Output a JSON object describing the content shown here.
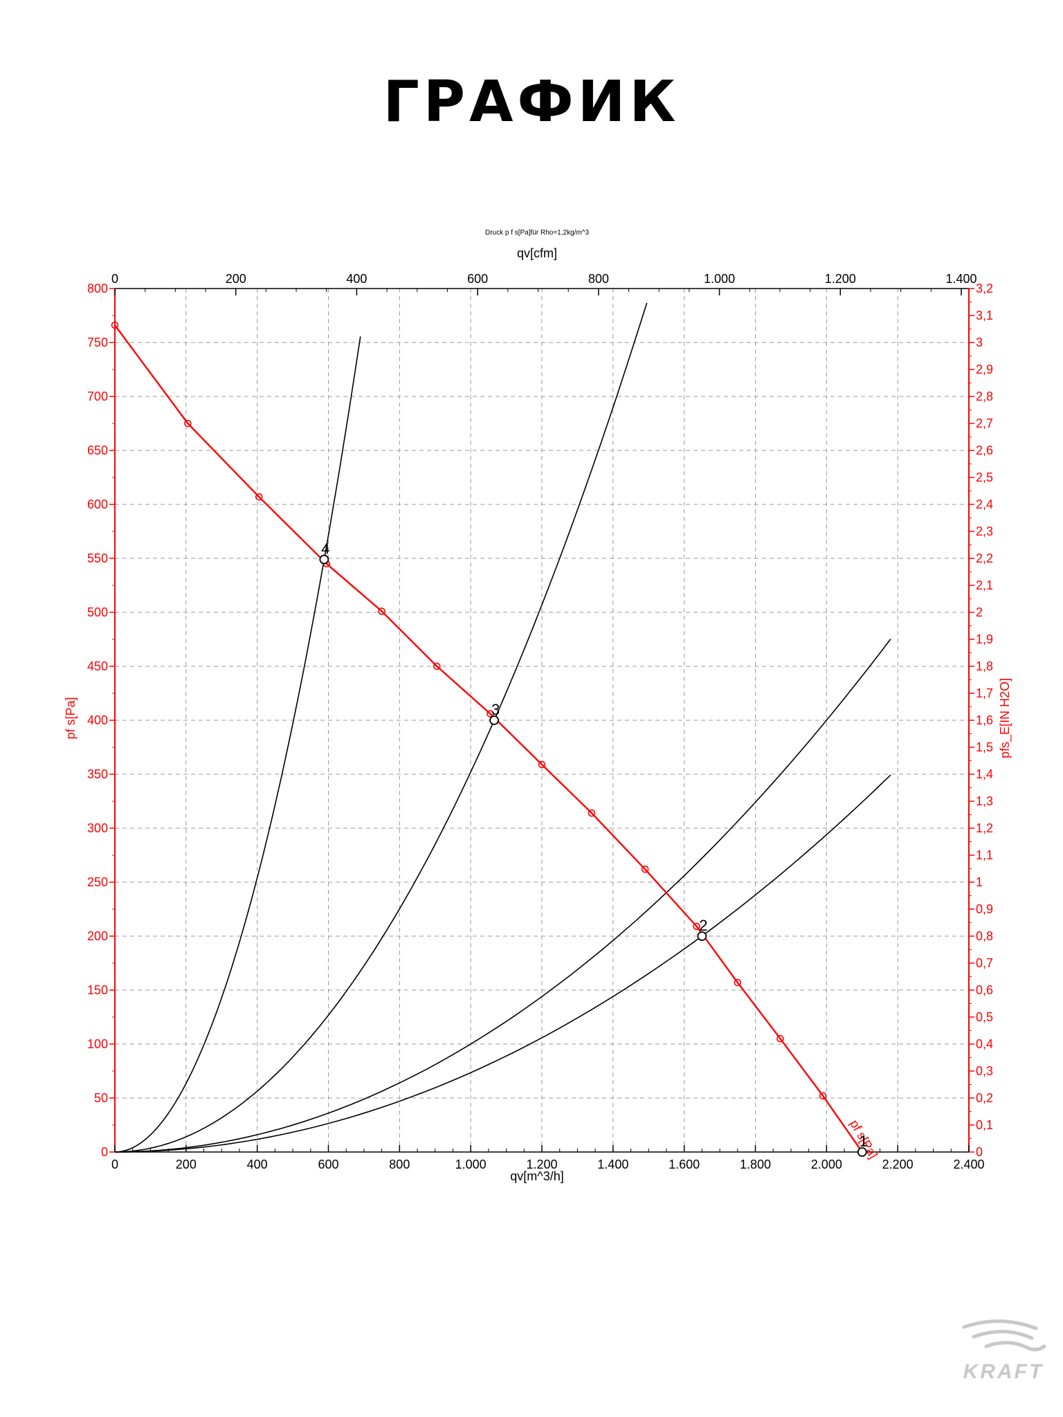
{
  "page": {
    "title": "ГРАФИК"
  },
  "chart_data": {
    "type": "line",
    "title": "Druck p f s[Pa]für Rho=1,2kg/m^3",
    "x_bottom": {
      "label": "qv[m^3/h]",
      "min": 0,
      "max": 2400,
      "ticks": [
        0,
        200,
        400,
        600,
        800,
        1000,
        1200,
        1400,
        1600,
        1800,
        2000,
        2200,
        2400
      ],
      "tick_labels": [
        "0",
        "200",
        "400",
        "600",
        "800",
        "1.000",
        "1.200",
        "1.400",
        "1.600",
        "1.800",
        "2.000",
        "2.200",
        "2.400"
      ]
    },
    "x_top": {
      "label": "qv[cfm]",
      "min": 0,
      "max": 1412.6,
      "ticks": [
        0,
        200,
        400,
        600,
        800,
        1000,
        1200,
        1400
      ],
      "tick_labels": [
        "0",
        "200",
        "400",
        "600",
        "800",
        "1.000",
        "1.200",
        "1.400"
      ]
    },
    "y_left": {
      "label": "pf s[Pa]",
      "min": 0,
      "max": 800,
      "ticks": [
        0,
        50,
        100,
        150,
        200,
        250,
        300,
        350,
        400,
        450,
        500,
        550,
        600,
        650,
        700,
        750,
        800
      ],
      "tick_labels": [
        "0",
        "50",
        "100",
        "150",
        "200",
        "250",
        "300",
        "350",
        "400",
        "450",
        "500",
        "550",
        "600",
        "650",
        "700",
        "750",
        "800"
      ]
    },
    "y_right": {
      "label": "pfs_E[IN H2O]",
      "min": 0,
      "max": 3.2,
      "ticks": [
        0,
        0.1,
        0.2,
        0.3,
        0.4,
        0.5,
        0.6,
        0.7,
        0.8,
        0.9,
        1,
        1.1,
        1.2,
        1.3,
        1.4,
        1.5,
        1.6,
        1.7,
        1.8,
        1.9,
        2,
        2.1,
        2.2,
        2.3,
        2.4,
        2.5,
        2.6,
        2.7,
        2.8,
        2.9,
        3,
        3.1,
        3.2
      ],
      "tick_labels": [
        "0",
        "0,1",
        "0,2",
        "0,3",
        "0,4",
        "0,5",
        "0,6",
        "0,7",
        "0,8",
        "0,9",
        "1",
        "1,1",
        "1,2",
        "1,3",
        "1,4",
        "1,5",
        "1,6",
        "1,7",
        "1,8",
        "1,9",
        "2",
        "2,1",
        "2,2",
        "2,3",
        "2,4",
        "2,5",
        "2,6",
        "2,7",
        "2,8",
        "2,9",
        "3",
        "3,1",
        "3,2"
      ]
    },
    "grid": true,
    "series": [
      {
        "name": "pf s[Pa]",
        "color": "#ff0000",
        "x": [
          0,
          205,
          405,
          595,
          750,
          905,
          1055,
          1200,
          1340,
          1490,
          1635,
          1750,
          1870,
          1990,
          2100
        ],
        "y": [
          766,
          675,
          607,
          545,
          501,
          450,
          406,
          359,
          314,
          262,
          209,
          157,
          105,
          52,
          0
        ],
        "markers": true
      }
    ],
    "system_curves": [
      {
        "name": "1",
        "color": "#000000",
        "k": 0.0001,
        "x_end": 2180
      },
      {
        "name": "2",
        "color": "#000000",
        "k": 7.35e-05,
        "x_end": 2180
      },
      {
        "name": "3",
        "color": "#000000",
        "k": 0.000352,
        "x_end": 1495
      },
      {
        "name": "4",
        "color": "#000000",
        "k": 0.001587,
        "x_end": 690
      }
    ],
    "operating_points": [
      {
        "label": "1",
        "x": 2100,
        "y": 0
      },
      {
        "label": "2",
        "x": 1650,
        "y": 200
      },
      {
        "label": "3",
        "x": 1066,
        "y": 400
      },
      {
        "label": "4",
        "x": 588,
        "y": 549
      }
    ]
  },
  "logo": {
    "text": "KRAFT",
    "color": "#c8c8c8"
  }
}
